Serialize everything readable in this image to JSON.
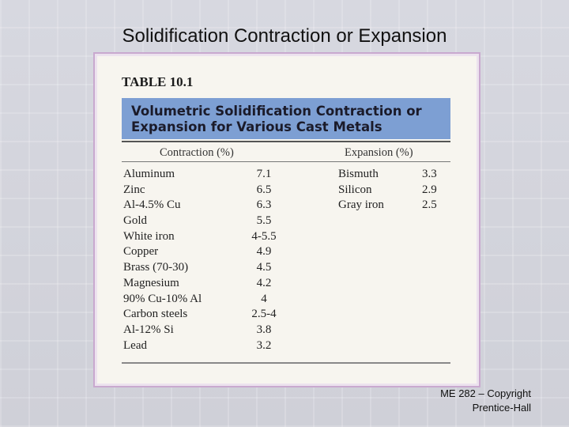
{
  "slide": {
    "title": "Solidification Contraction or Expansion",
    "footer_line1": "ME 282 – Copyright",
    "footer_line2": "Prentice-Hall"
  },
  "table": {
    "label": "TABLE 10.1",
    "caption": "Volumetric Solidification Contraction or\nExpansion for Various Cast Metals",
    "contraction_header": "Contraction (%)",
    "expansion_header": "Expansion (%)",
    "contraction": [
      {
        "metal": "Aluminum",
        "value": "7.1"
      },
      {
        "metal": "Zinc",
        "value": "6.5"
      },
      {
        "metal": "Al-4.5% Cu",
        "value": "6.3"
      },
      {
        "metal": "Gold",
        "value": "5.5"
      },
      {
        "metal": "White iron",
        "value": "4-5.5"
      },
      {
        "metal": "Copper",
        "value": "4.9"
      },
      {
        "metal": "Brass (70-30)",
        "value": "4.5"
      },
      {
        "metal": "Magnesium",
        "value": "4.2"
      },
      {
        "metal": "90% Cu-10% Al",
        "value": "4"
      },
      {
        "metal": "Carbon steels",
        "value": "2.5-4"
      },
      {
        "metal": "Al-12% Si",
        "value": "3.8"
      },
      {
        "metal": "Lead",
        "value": "3.2"
      }
    ],
    "expansion": [
      {
        "metal": "Bismuth",
        "value": "3.3"
      },
      {
        "metal": "Silicon",
        "value": "2.9"
      },
      {
        "metal": "Gray iron",
        "value": "2.5"
      }
    ]
  }
}
